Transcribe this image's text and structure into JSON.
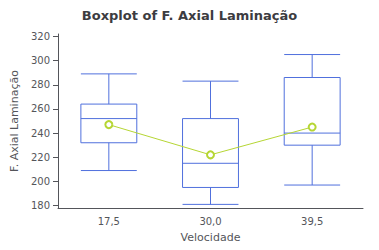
{
  "chart_data": {
    "type": "boxplot",
    "title": "Boxplot of F. Axial Laminação",
    "xlabel": "Velocidade",
    "ylabel": "F. Axial Laminação",
    "categories": [
      "17,5",
      "30,0",
      "39,5"
    ],
    "boxes": [
      {
        "whis_low": 209,
        "q1": 232,
        "median": 252,
        "q3": 264,
        "whis_high": 289,
        "mean": 247
      },
      {
        "whis_low": 181,
        "q1": 195,
        "median": 215,
        "q3": 252,
        "whis_high": 283,
        "mean": 222
      },
      {
        "whis_low": 197,
        "q1": 230,
        "median": 240,
        "q3": 286,
        "whis_high": 305,
        "mean": 245
      }
    ],
    "ylim": [
      178,
      322
    ],
    "yticks": [
      180,
      200,
      220,
      240,
      260,
      280,
      300,
      320
    ],
    "grid": false
  }
}
